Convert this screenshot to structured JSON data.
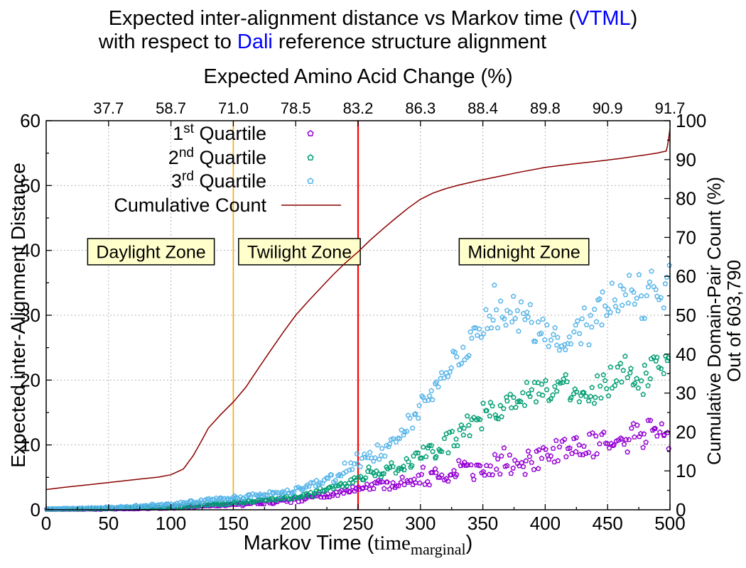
{
  "title": {
    "line1_prefix": "Expected inter-alignment distance vs Markov time (",
    "line1_highlight": "VTML",
    "line1_suffix": ")",
    "line2_prefix": "with respect to ",
    "line2_highlight": "Dali",
    "line2_suffix": " reference structure alignment",
    "highlight_color": "#0000ff"
  },
  "chart_data": {
    "type": "scatter",
    "top_axis": {
      "label": "Expected Amino Acid Change (%)",
      "tick_positions": [
        50,
        100,
        150,
        200,
        250,
        300,
        350,
        400,
        450,
        500
      ],
      "tick_labels": [
        "37.7",
        "58.7",
        "71.0",
        "78.5",
        "83.2",
        "86.3",
        "88.4",
        "89.8",
        "90.9",
        "91.7"
      ]
    },
    "bottom_axis": {
      "label_prefix": "Markov Time (",
      "label_word": "time",
      "label_subscript": "marginal",
      "label_suffix": ")",
      "range": [
        0,
        500
      ],
      "ticks": [
        0,
        50,
        100,
        150,
        200,
        250,
        300,
        350,
        400,
        450,
        500
      ],
      "minor_step": 25
    },
    "left_axis": {
      "label": "Expected inter-Alignment Distance",
      "range": [
        0,
        60
      ],
      "ticks": [
        0,
        10,
        20,
        30,
        40,
        50,
        60
      ],
      "minor_step": 5
    },
    "right_axis": {
      "label_line1": "Cumulative Domain-Pair Count (%)",
      "label_line2": "Out of 603,790",
      "range": [
        0,
        100
      ],
      "ticks": [
        0,
        10,
        20,
        30,
        40,
        50,
        60,
        70,
        80,
        90,
        100
      ],
      "minor_step": 5
    },
    "grid": {
      "color": "#b4b4b4",
      "x_step": 50,
      "y_step": 10
    },
    "threshold_lines": [
      {
        "x": 150,
        "color": "#ffa500",
        "width": 1.6
      },
      {
        "x": 250,
        "color": "#ff0000",
        "width": 2.2
      }
    ],
    "zones": [
      {
        "label": "Daylight Zone",
        "x_center": 84,
        "y_center": 39.8
      },
      {
        "label": "Twilight Zone",
        "x_center": 203,
        "y_center": 39.8
      },
      {
        "label": "Midnight Zone",
        "x_center": 383,
        "y_center": 39.8
      }
    ],
    "zone_style": {
      "fill": "#ffffcc",
      "border": "#000000"
    },
    "legend": [
      {
        "prefix": "1",
        "sup": "st",
        "rest": " Quartile",
        "marker": "pentagon",
        "color": "#9400d3"
      },
      {
        "prefix": "2",
        "sup": "nd",
        "rest": " Quartile",
        "marker": "pentagon",
        "color": "#009e73"
      },
      {
        "prefix": "3",
        "sup": "rd",
        "rest": " Quartile",
        "marker": "pentagon",
        "color": "#56b4e9"
      },
      {
        "prefix": "Cumulative Count",
        "sup": "",
        "rest": "",
        "marker": "line",
        "color": "#8b0000"
      }
    ],
    "series": [
      {
        "name": "1st Quartile",
        "color": "#9400d3",
        "axis": "left",
        "spread_scale": 0.9,
        "outlier_rate": 0,
        "trend": [
          [
            0,
            0.05
          ],
          [
            50,
            0.12
          ],
          [
            100,
            0.3
          ],
          [
            150,
            0.8
          ],
          [
            200,
            1.5
          ],
          [
            250,
            3.3
          ],
          [
            280,
            4.2
          ],
          [
            300,
            5.0
          ],
          [
            325,
            5.9
          ],
          [
            350,
            6.7
          ],
          [
            365,
            7.4
          ],
          [
            380,
            7.1
          ],
          [
            400,
            8.6
          ],
          [
            420,
            9.0
          ],
          [
            440,
            9.8
          ],
          [
            455,
            10.3
          ],
          [
            470,
            11.3
          ],
          [
            485,
            12.6
          ],
          [
            500,
            11.4
          ]
        ]
      },
      {
        "name": "2nd Quartile",
        "color": "#009e73",
        "axis": "left",
        "spread_scale": 1.0,
        "outlier_rate": 0.03,
        "trend": [
          [
            0,
            0.07
          ],
          [
            50,
            0.18
          ],
          [
            100,
            0.45
          ],
          [
            150,
            1.1
          ],
          [
            200,
            1.9
          ],
          [
            250,
            4.6
          ],
          [
            280,
            6.6
          ],
          [
            300,
            8.5
          ],
          [
            325,
            10.8
          ],
          [
            350,
            14.3
          ],
          [
            375,
            16.5
          ],
          [
            400,
            18.6
          ],
          [
            415,
            19.8
          ],
          [
            430,
            16.5
          ],
          [
            445,
            18.8
          ],
          [
            460,
            21.5
          ],
          [
            475,
            19.8
          ],
          [
            490,
            22.0
          ],
          [
            500,
            23.3
          ]
        ]
      },
      {
        "name": "3rd Quartile",
        "color": "#56b4e9",
        "axis": "left",
        "spread_scale": 1.3,
        "outlier_rate": 0.06,
        "trend": [
          [
            0,
            0.1
          ],
          [
            50,
            0.3
          ],
          [
            100,
            0.8
          ],
          [
            150,
            1.9
          ],
          [
            200,
            2.9
          ],
          [
            230,
            5.0
          ],
          [
            250,
            7.0
          ],
          [
            265,
            8.5
          ],
          [
            280,
            11.0
          ],
          [
            300,
            15.8
          ],
          [
            315,
            20.0
          ],
          [
            330,
            23.8
          ],
          [
            345,
            27.0
          ],
          [
            360,
            30.0
          ],
          [
            375,
            31.0
          ],
          [
            390,
            28.5
          ],
          [
            405,
            26.8
          ],
          [
            420,
            26.0
          ],
          [
            435,
            29.0
          ],
          [
            450,
            31.5
          ],
          [
            465,
            33.0
          ],
          [
            480,
            33.0
          ],
          [
            490,
            34.8
          ],
          [
            500,
            34.3
          ]
        ]
      }
    ],
    "scatter_spread": [
      [
        0,
        0.04
      ],
      [
        100,
        0.15
      ],
      [
        150,
        0.3
      ],
      [
        200,
        0.5
      ],
      [
        250,
        0.8
      ],
      [
        300,
        1.8
      ],
      [
        350,
        2.4
      ],
      [
        400,
        2.8
      ],
      [
        450,
        3.0
      ],
      [
        500,
        3.2
      ]
    ],
    "cumulative": {
      "name": "Cumulative Count",
      "color": "#8b0000",
      "axis": "right",
      "points": [
        [
          0,
          5.2
        ],
        [
          15,
          5.8
        ],
        [
          30,
          6.3
        ],
        [
          50,
          7.0
        ],
        [
          75,
          7.9
        ],
        [
          90,
          8.4
        ],
        [
          100,
          9.0
        ],
        [
          110,
          10.5
        ],
        [
          118,
          14.0
        ],
        [
          125,
          18.0
        ],
        [
          130,
          21.0
        ],
        [
          140,
          24.5
        ],
        [
          150,
          27.7
        ],
        [
          160,
          31.5
        ],
        [
          170,
          36.3
        ],
        [
          180,
          41.0
        ],
        [
          190,
          45.6
        ],
        [
          200,
          50.0
        ],
        [
          210,
          53.6
        ],
        [
          220,
          57.0
        ],
        [
          230,
          60.4
        ],
        [
          240,
          63.5
        ],
        [
          250,
          66.3
        ],
        [
          260,
          69.4
        ],
        [
          270,
          72.2
        ],
        [
          280,
          74.9
        ],
        [
          290,
          77.5
        ],
        [
          300,
          79.8
        ],
        [
          310,
          81.4
        ],
        [
          320,
          82.5
        ],
        [
          330,
          83.4
        ],
        [
          345,
          84.5
        ],
        [
          360,
          85.5
        ],
        [
          380,
          86.8
        ],
        [
          400,
          88.0
        ],
        [
          420,
          88.8
        ],
        [
          440,
          89.5
        ],
        [
          460,
          90.3
        ],
        [
          480,
          91.2
        ],
        [
          490,
          91.7
        ],
        [
          497,
          92.2
        ],
        [
          498,
          93.5
        ],
        [
          499,
          95.5
        ],
        [
          500,
          98.0
        ]
      ]
    }
  }
}
